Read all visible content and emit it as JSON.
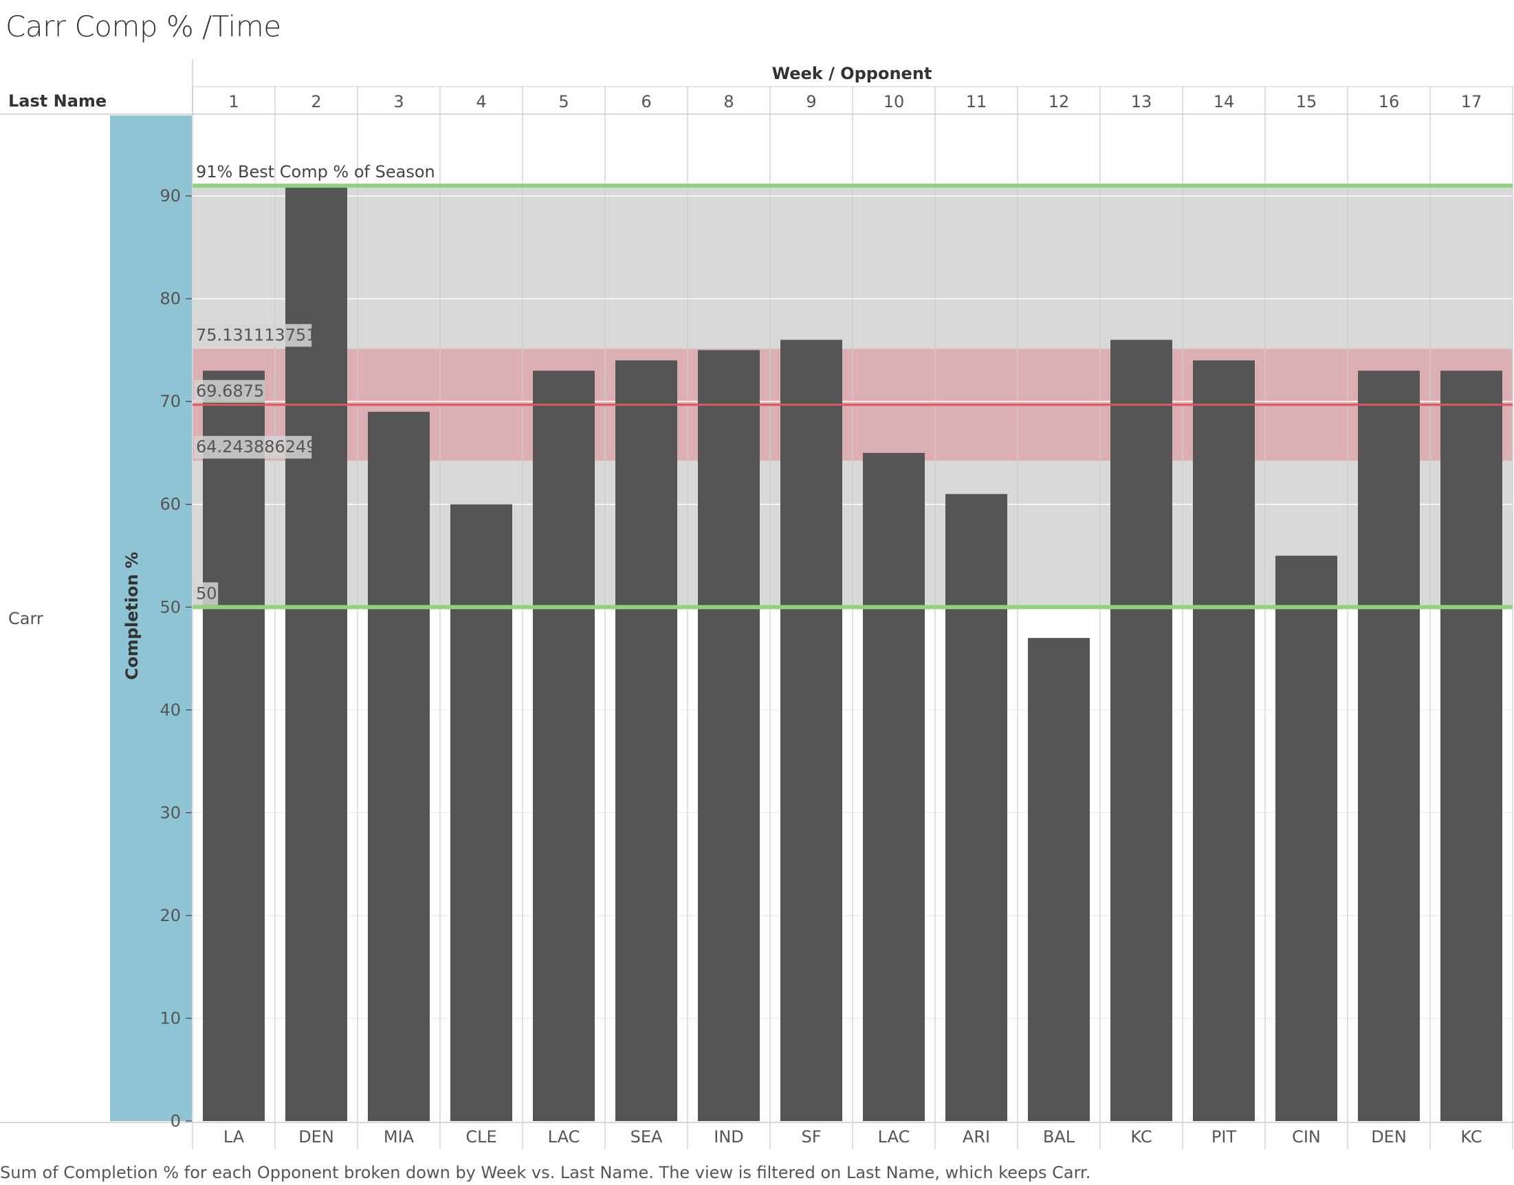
{
  "title": "Carr Comp % /Time",
  "caption": "Sum of Completion % for each Opponent broken down by Week vs. Last Name. The view is filtered on Last Name, which keeps Carr.",
  "header": {
    "column_group_label": "Week / Opponent",
    "row_header_label": "Last Name"
  },
  "row_label": "Carr",
  "chart_data": {
    "type": "bar",
    "title": "Carr Comp % /Time",
    "xlabel": "Week / Opponent",
    "ylabel": "Completion %",
    "weeks": [
      "1",
      "2",
      "3",
      "4",
      "5",
      "6",
      "8",
      "9",
      "10",
      "11",
      "12",
      "13",
      "14",
      "15",
      "16",
      "17"
    ],
    "categories": [
      "LA",
      "DEN",
      "MIA",
      "CLE",
      "LAC",
      "SEA",
      "IND",
      "SF",
      "LAC",
      "ARI",
      "BAL",
      "KC",
      "PIT",
      "CIN",
      "DEN",
      "KC"
    ],
    "values": [
      73,
      91,
      69,
      60,
      73,
      74,
      75,
      76,
      65,
      61,
      47,
      76,
      74,
      55,
      73,
      73
    ],
    "ylim": [
      0,
      98
    ],
    "yticks": [
      0,
      10,
      20,
      30,
      40,
      50,
      60,
      70,
      80,
      90
    ],
    "grid": true,
    "reference_lines": [
      {
        "value": 91,
        "label": "91% Best Comp % of Season",
        "color": "#8fd17e"
      },
      {
        "value": 75.131113751,
        "label": "75.131113751",
        "color": "#d7a9ad"
      },
      {
        "value": 69.6875,
        "label": "69.6875",
        "color": "#e0565f"
      },
      {
        "value": 64.243886249,
        "label": "64.243886249",
        "color": "#d7a9ad"
      },
      {
        "value": 50,
        "label": "50",
        "color": "#8fd17e"
      }
    ],
    "bands": [
      {
        "from": 50,
        "to": 91,
        "color": "#d9d9d9"
      },
      {
        "from": 64.243886249,
        "to": 75.131113751,
        "color": "#dbafb3"
      }
    ],
    "colors": {
      "bar": "#555555",
      "axis_strip": "#8ec4d4",
      "best_line": "#8fd17e",
      "average_line": "#e0565f"
    }
  }
}
